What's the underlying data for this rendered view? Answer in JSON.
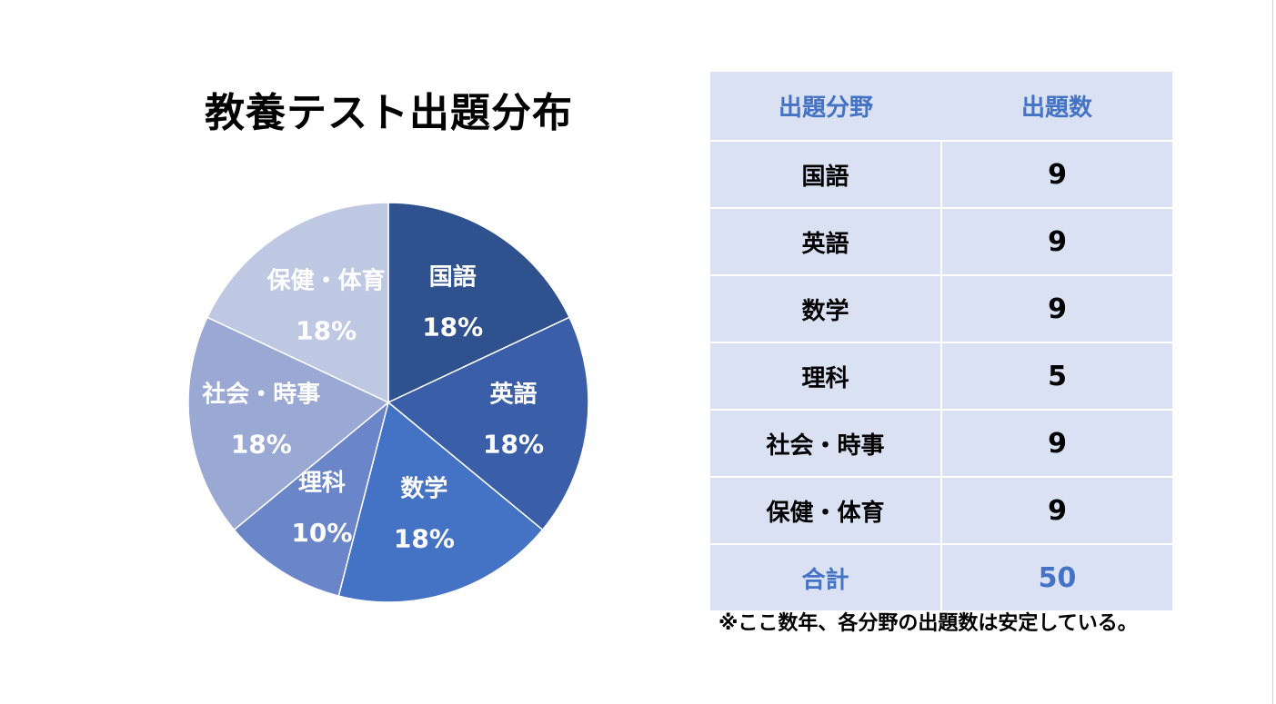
{
  "title": "教養テスト出題分布",
  "chart_data": {
    "type": "pie",
    "title": "教養テスト出題分布",
    "categories": [
      "国語",
      "英語",
      "数学",
      "理科",
      "社会・時事",
      "保健・体育"
    ],
    "values": [
      9,
      9,
      9,
      5,
      9,
      9
    ],
    "labels": [
      "18%",
      "18%",
      "18%",
      "10%",
      "18%",
      "18%"
    ],
    "colors": [
      "#2f528f",
      "#3a5ea8",
      "#4472c4",
      "#6b86c8",
      "#9aa8d4",
      "#bfc8e3"
    ]
  },
  "table": {
    "headers": [
      "出題分野",
      "出題数"
    ],
    "rows": [
      [
        "国語",
        "9"
      ],
      [
        "英語",
        "9"
      ],
      [
        "数学",
        "9"
      ],
      [
        "理科",
        "5"
      ],
      [
        "社会・時事",
        "9"
      ],
      [
        "保健・体育",
        "9"
      ]
    ],
    "total_label": "合計",
    "total_value": "50"
  },
  "note": "※ここ数年、各分野の出題数は安定している。",
  "colors": {
    "header_text": "#4472c4",
    "table_bg": "#d9e1f2"
  }
}
